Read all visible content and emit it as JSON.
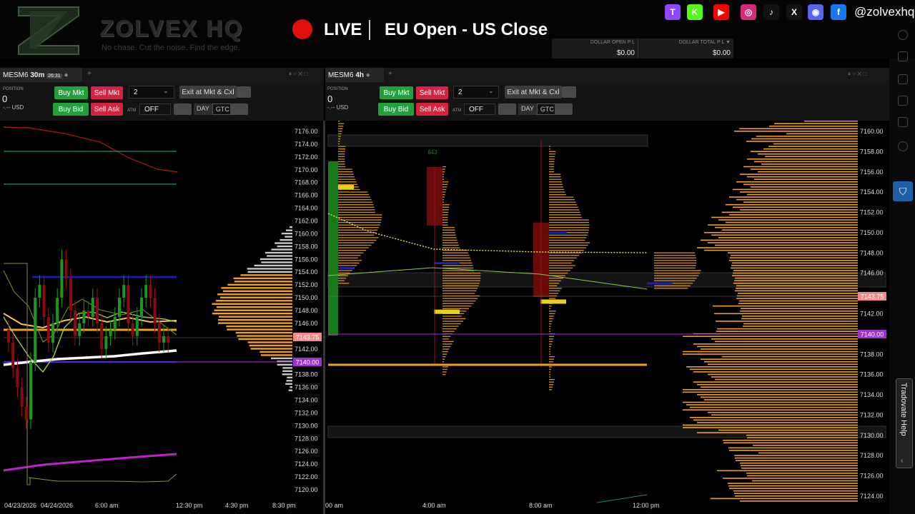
{
  "header": {
    "brand": "ZOLVEX HQ",
    "tagline": "No chase. Cut the noise. Find the edge.",
    "live_label": "LIVE",
    "session_title": "EU Open - US Close",
    "handle": "@zolvexhq",
    "socials": [
      {
        "icon": "twitch-icon",
        "glyph": "T",
        "color": "#9146ff"
      },
      {
        "icon": "kick-icon",
        "glyph": "K",
        "color": "#53fc18"
      },
      {
        "icon": "youtube-icon",
        "glyph": "▶",
        "color": "#ff0000"
      },
      {
        "icon": "instagram-icon",
        "glyph": "◎",
        "color": "#d62976"
      },
      {
        "icon": "tiktok-icon",
        "glyph": "♪",
        "color": "#111111"
      },
      {
        "icon": "x-icon",
        "glyph": "X",
        "color": "#111111"
      },
      {
        "icon": "discord-icon",
        "glyph": "◉",
        "color": "#5865f2"
      },
      {
        "icon": "facebook-icon",
        "glyph": "f",
        "color": "#1877f2"
      }
    ]
  },
  "pl": {
    "open_label": "DOLLAR OPEN P L",
    "total_label": "DOLLAR TOTAL P L ▼",
    "open_value": "$0.00",
    "total_value": "$0.00"
  },
  "left_panel": {
    "symbol": "MESM6",
    "interval": "30m",
    "countdown": "26:31",
    "position_label": "POSITION",
    "position_value": "0",
    "position_usd": "-.-- USD",
    "buy_mkt": "Buy Mkt",
    "sell_mkt": "Sell Mkt",
    "buy_bid": "Buy Bid",
    "sell_ask": "Sell Ask",
    "qty": "2",
    "exit_label": "Exit at Mkt & Cxl",
    "atm_label": "ATM",
    "atm_value": "OFF",
    "tif_day": "DAY",
    "tif_gtc": "GTC",
    "price_axis": [
      "7176.00",
      "7174.00",
      "7172.00",
      "7170.00",
      "7168.00",
      "7166.00",
      "7164.00",
      "7162.00",
      "7160.00",
      "7158.00",
      "7156.00",
      "7154.00",
      "7152.00",
      "7150.00",
      "7148.00",
      "7146.00",
      "7142.00",
      "7138.00",
      "7136.00",
      "7134.00",
      "7132.00",
      "7130.00",
      "7128.00",
      "7126.00",
      "7124.00",
      "7122.00",
      "7120.00"
    ],
    "price_top": "7178.00",
    "price_bottom": "7118.00",
    "last_price": "7143.75",
    "level_price": "7140.00",
    "time_axis": [
      "04/23/2026",
      "04/24/2026",
      "6:00 am",
      "12:30 pm",
      "4:30 pm",
      "8:30 pm"
    ]
  },
  "right_panel": {
    "symbol": "MESM6",
    "interval": "4h",
    "position_label": "POSITION",
    "position_value": "0",
    "position_usd": "-.-- USD",
    "buy_mkt": "Buy Mkt",
    "sell_mkt": "Sell Mkt",
    "buy_bid": "Buy Bid",
    "sell_ask": "Sell Ask",
    "qty": "2",
    "exit_label": "Exit at Mkt & Cxl",
    "atm_label": "ATM",
    "atm_value": "OFF",
    "tif_day": "DAY",
    "tif_gtc": "GTC",
    "price_axis": [
      "7160.00",
      "7158.00",
      "7156.00",
      "7154.00",
      "7152.00",
      "7150.00",
      "7148.00",
      "7146.00",
      "7142.00",
      "7138.00",
      "7136.00",
      "7134.00",
      "7132.00",
      "7130.00",
      "7128.00",
      "7126.00",
      "7124.00"
    ],
    "last_price": "7143.75",
    "level_price": "7140.00",
    "volume_label": "843",
    "time_axis": [
      "00 am",
      "4:00 am",
      "8:00 am",
      "12:00 pm"
    ]
  },
  "sidebar": {
    "help_label": "Tradovate Help"
  }
}
